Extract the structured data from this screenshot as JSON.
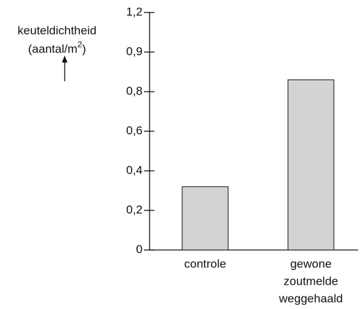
{
  "chart_data": {
    "type": "bar",
    "ylabel": {
      "name": "keuteldichtheid",
      "unit": "(aantal/m",
      "unit_sup": "2",
      "unit_end": ")"
    },
    "categories": [
      [
        "controle"
      ],
      [
        "gewone",
        "zoutmelde",
        "weggehaald"
      ]
    ],
    "values": [
      0.32,
      0.83
    ],
    "color": "#d3d3d3",
    "ylim": [
      0,
      1.2
    ],
    "yticks": [
      0,
      {
        "value": 0.2,
        "label": "0,2"
      },
      {
        "value": 0.4,
        "label": "0,4"
      },
      {
        "value": 0.6,
        "label": "0,6"
      },
      {
        "value": 0.8,
        "label": "0,8"
      },
      {
        "value": 0.9,
        "label": "0,9"
      },
      {
        "value": 1.2,
        "label": "1,2"
      }
    ]
  }
}
